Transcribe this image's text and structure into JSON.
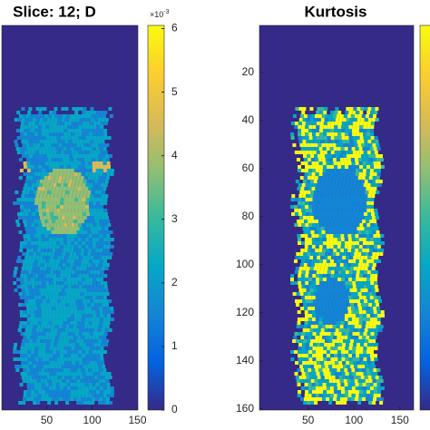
{
  "chart_data": [
    {
      "type": "image",
      "title": "Slice: 12; D",
      "xlim": [
        0.5,
        150.5
      ],
      "xticks": [
        50,
        100,
        150
      ],
      "ylim": [
        0.5,
        160.5
      ],
      "colormap": [
        "#352a87",
        "#0363e1",
        "#1485d4",
        "#06a7c6",
        "#38b99e",
        "#92bf73",
        "#d9ba56",
        "#fcce2e",
        "#f9fb0e"
      ],
      "colorbar": {
        "ylim": [
          0,
          6.05
        ],
        "yticks": [
          0,
          1,
          2,
          3,
          4,
          5,
          6
        ],
        "scale_label": "×10",
        "scale_exponent": "-3"
      }
    },
    {
      "type": "image",
      "title": "Kurtosis",
      "xlim": [
        -3,
        165
      ],
      "xticks": [
        50,
        100,
        150
      ],
      "ylim": [
        0.5,
        160.5
      ],
      "yticks": [
        20,
        40,
        60,
        80,
        100,
        120,
        140,
        160
      ],
      "colormap": [
        "#352a87",
        "#0363e1",
        "#1485d4",
        "#06a7c6",
        "#38b99e",
        "#92bf73",
        "#d9ba56",
        "#fcce2e",
        "#f9fb0e"
      ]
    }
  ]
}
